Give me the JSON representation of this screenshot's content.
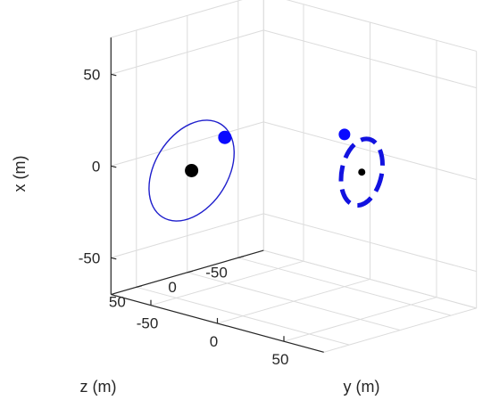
{
  "chart_data": {
    "type": "scatter",
    "projection": "3d",
    "grid": true,
    "axes": {
      "x": {
        "label": "x (m)",
        "ticks": [
          -50,
          0,
          50
        ],
        "tick_labels": [
          "-50",
          "0",
          "50"
        ],
        "range": [
          -70,
          70
        ]
      },
      "y": {
        "label": "y (m)",
        "ticks": [
          -50,
          0,
          50
        ],
        "tick_labels": [
          "-50",
          "0",
          "50"
        ],
        "range": [
          -80,
          80
        ]
      },
      "z": {
        "label": "z (m)",
        "ticks": [
          -50,
          0,
          50
        ],
        "tick_labels": [
          "-50",
          "0",
          "50"
        ],
        "range": [
          -75,
          75
        ]
      }
    },
    "series": [
      {
        "style": "thin-solid-ellipse",
        "color": "#1f1fcc",
        "center": {
          "x": -3,
          "y": -50,
          "z": 35
        },
        "approx_extent": {
          "x": [
            -35,
            30
          ],
          "y": [
            -70,
            -15
          ]
        }
      },
      {
        "style": "thick-dashed-ellipse",
        "color": "#1212e0",
        "center": {
          "x": 12,
          "y": 55,
          "z": 5
        },
        "approx_extent": {
          "x": [
            -8,
            32
          ],
          "y": [
            40,
            70
          ]
        }
      }
    ],
    "markers": [
      {
        "kind": "center",
        "color": "#000000",
        "size": "large",
        "x": -3,
        "y": -50,
        "z": 35
      },
      {
        "kind": "object",
        "color": "#0a0aff",
        "size": "large",
        "x": 20,
        "y": -25,
        "z": 35
      },
      {
        "kind": "center",
        "color": "#000000",
        "size": "small",
        "x": 12,
        "y": 55,
        "z": 5
      },
      {
        "kind": "object",
        "color": "#0a0aff",
        "size": "medium",
        "x": 30,
        "y": 42,
        "z": 5
      }
    ]
  }
}
